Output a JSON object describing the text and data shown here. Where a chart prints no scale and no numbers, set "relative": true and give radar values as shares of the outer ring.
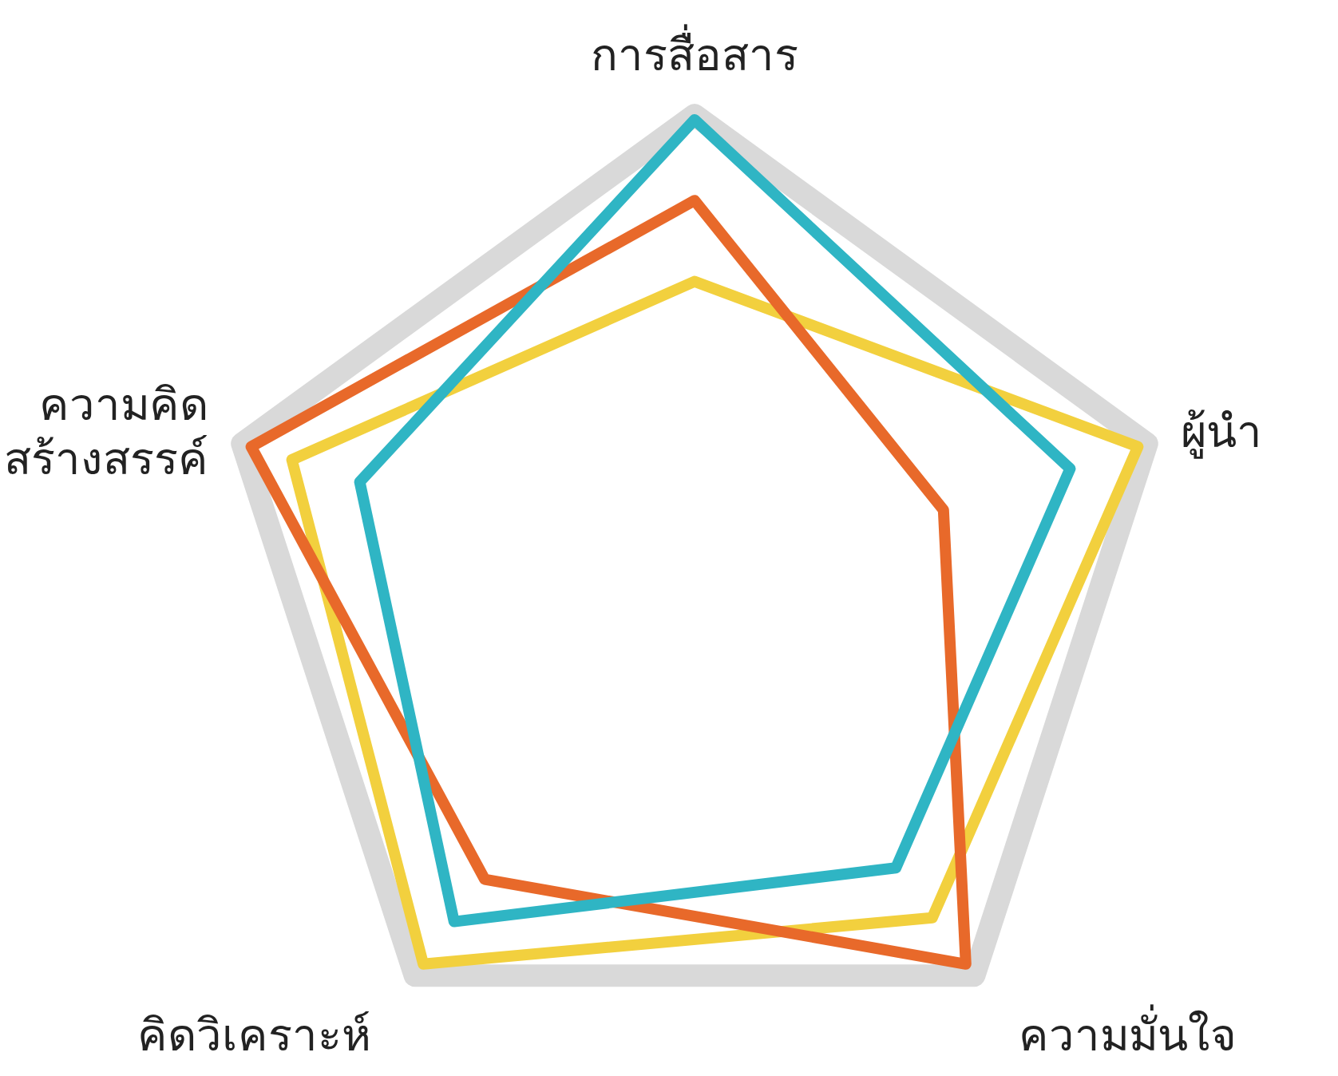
{
  "chart_data": {
    "type": "radar",
    "relative": true,
    "grid": true,
    "categories": [
      "การสื่อสาร",
      "ผู้นำ",
      "ความมั่นใจ",
      "คิดวิเคราะห์",
      "ความคิด\nสร้างสรรค์"
    ],
    "series": [
      {
        "color": "#f2d03e",
        "values": [
          0.65,
          0.98,
          0.85,
          0.97,
          0.89
        ]
      },
      {
        "color": "#e8692a",
        "values": [
          0.82,
          0.55,
          0.97,
          0.75,
          0.98
        ]
      },
      {
        "color": "#2fb5c4",
        "values": [
          0.99,
          0.83,
          0.72,
          0.86,
          0.74
        ]
      }
    ]
  }
}
